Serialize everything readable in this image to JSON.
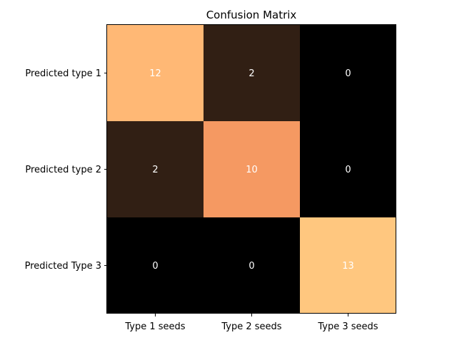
{
  "chart_data": {
    "type": "heatmap",
    "title": "Confusion Matrix",
    "xlabel": "",
    "ylabel": "",
    "x_categories": [
      "Type 1 seeds",
      "Type 2 seeds",
      "Type 3 seeds"
    ],
    "y_categories": [
      "Predicted type 1",
      "Predicted type 2",
      "Predicted Type 3"
    ],
    "matrix": [
      [
        12,
        2,
        0
      ],
      [
        2,
        10,
        0
      ],
      [
        0,
        0,
        13
      ]
    ],
    "value_range": [
      0,
      13
    ],
    "colormap": "copper",
    "label_color": "#ffffff",
    "axis_color": "#000000"
  }
}
